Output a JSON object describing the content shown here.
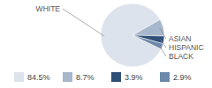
{
  "chart_data": {
    "type": "pie",
    "categories": [
      "WHITE",
      "ASIAN",
      "HISPANIC",
      "BLACK"
    ],
    "values": [
      84.5,
      8.7,
      3.9,
      2.9
    ],
    "value_labels": [
      "84.5%",
      "8.7%",
      "3.9%",
      "2.9%"
    ],
    "colors": [
      "#dde3ec",
      "#a7b7cc",
      "#2f4f78",
      "#6c88ab"
    ],
    "data_labels": true
  }
}
